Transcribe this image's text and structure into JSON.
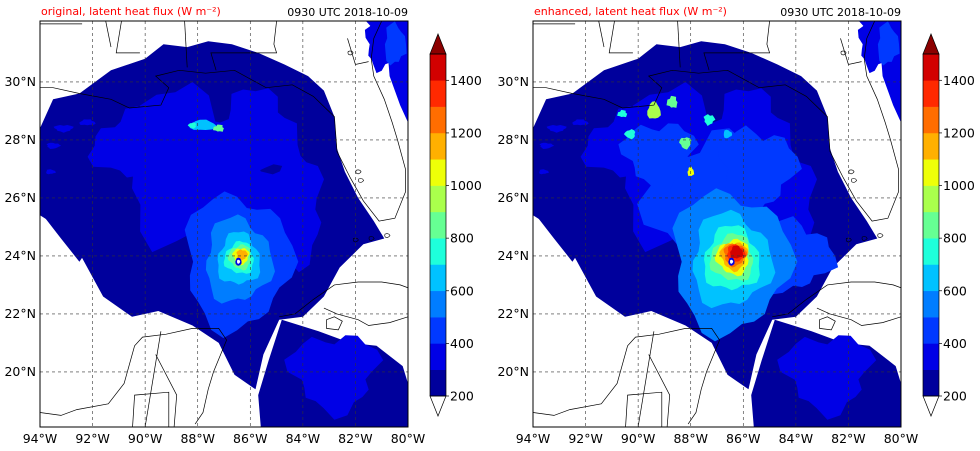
{
  "panels": [
    {
      "id": "original",
      "title_left": "original, latent heat flux (W m⁻²)",
      "title_right": "0930 UTC 2018-10-09",
      "enhanced": false
    },
    {
      "id": "enhanced",
      "title_left": "enhanced, latent heat flux (W m⁻²)",
      "title_right": "0930 UTC 2018-10-09",
      "enhanced": true
    }
  ],
  "chart_data": {
    "type": "heatmap",
    "lon_ticks": [
      "94°W",
      "92°W",
      "90°W",
      "88°W",
      "86°W",
      "84°W",
      "82°W",
      "80°W"
    ],
    "lon_values": [
      -94,
      -92,
      -90,
      -88,
      -86,
      -84,
      -82,
      -80
    ],
    "lat_ticks": [
      "20°N",
      "22°N",
      "24°N",
      "26°N",
      "28°N",
      "30°N"
    ],
    "lat_values": [
      20,
      22,
      24,
      26,
      28,
      30
    ],
    "xlim": [
      -94,
      -80
    ],
    "ylim": [
      18.1,
      32.1
    ],
    "colorbar": {
      "levels": [
        200,
        300,
        400,
        500,
        600,
        700,
        800,
        900,
        1000,
        1100,
        1200,
        1300,
        1400,
        1500
      ],
      "tick_labels": [
        "200",
        "400",
        "600",
        "800",
        "1000",
        "1200",
        "1400"
      ],
      "tick_values": [
        200,
        400,
        600,
        800,
        1000,
        1200,
        1400
      ],
      "colors": [
        "#00009c",
        "#0000e6",
        "#0039ff",
        "#007dff",
        "#00c2ff",
        "#1effdb",
        "#66ff93",
        "#aaff4c",
        "#eeff08",
        "#ffb000",
        "#ff6d00",
        "#ff2900",
        "#d20000"
      ],
      "extend_max_color": "#8b0000",
      "extend_min_color": "#ffffff"
    },
    "storm_center": {
      "lon": -86.5,
      "lat": 23.8
    },
    "grid": true
  }
}
